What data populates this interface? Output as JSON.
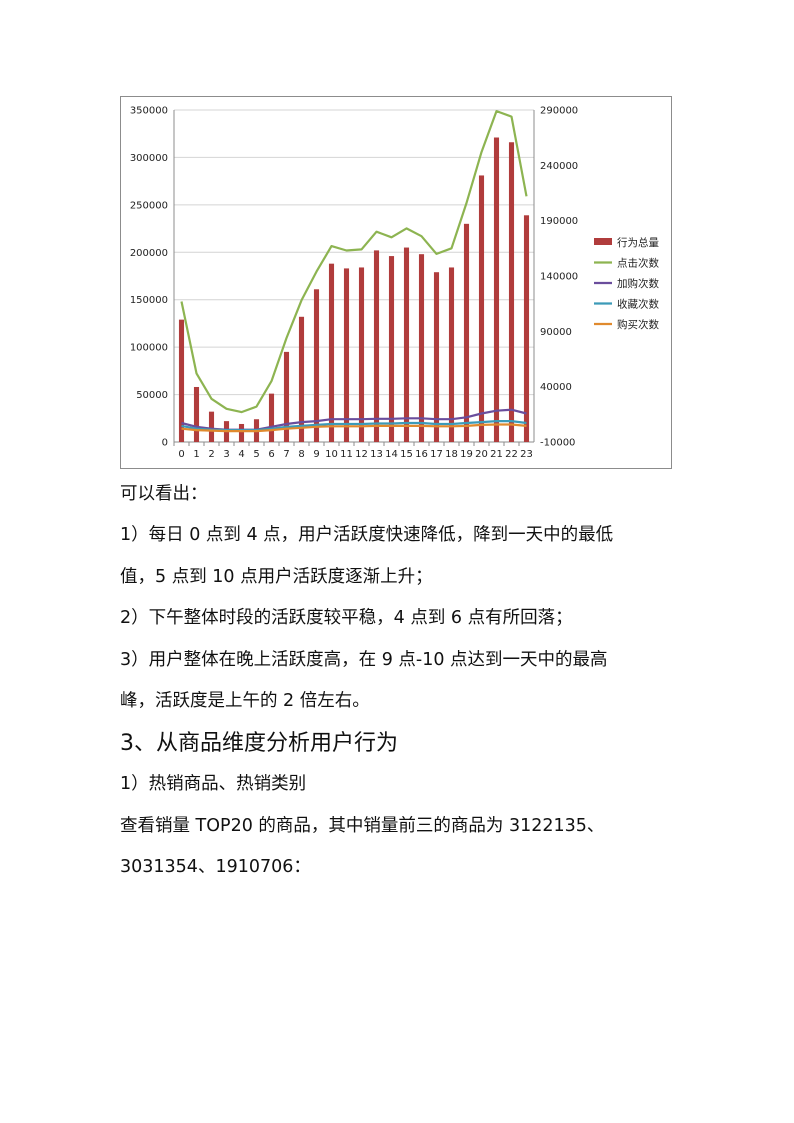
{
  "chart_data": {
    "type": "bar+line",
    "categories": [
      "0",
      "1",
      "2",
      "3",
      "4",
      "5",
      "6",
      "7",
      "8",
      "9",
      "10",
      "11",
      "12",
      "13",
      "14",
      "15",
      "16",
      "17",
      "18",
      "19",
      "20",
      "21",
      "22",
      "23"
    ],
    "series": [
      {
        "name": "行为总量",
        "type": "bar",
        "axis": "left",
        "color": "#b03c3c",
        "values": [
          129000,
          58000,
          32000,
          22000,
          19000,
          24000,
          51000,
          95000,
          132000,
          161000,
          188000,
          183000,
          184000,
          202000,
          196000,
          205000,
          198000,
          179000,
          184000,
          230000,
          281000,
          321000,
          316000,
          239000
        ]
      },
      {
        "name": "点击次数",
        "type": "line",
        "axis": "right",
        "color": "#8db451",
        "values": [
          117000,
          52000,
          29000,
          20000,
          17000,
          22000,
          45000,
          84000,
          118000,
          144000,
          167000,
          163000,
          164000,
          180000,
          175000,
          183000,
          176000,
          160000,
          165000,
          206000,
          252000,
          289000,
          284000,
          212000
        ]
      },
      {
        "name": "加购次数",
        "type": "line",
        "axis": "left",
        "color": "#6a4d9c",
        "values": [
          20000,
          16000,
          14000,
          13000,
          13000,
          13000,
          16000,
          19000,
          21000,
          22000,
          24000,
          24000,
          24000,
          24500,
          24500,
          25000,
          25000,
          24000,
          24000,
          26000,
          30000,
          33000,
          34000,
          30000
        ]
      },
      {
        "name": "收藏次数",
        "type": "line",
        "axis": "left",
        "color": "#3c9ab8",
        "values": [
          17000,
          14000,
          13000,
          12500,
          12500,
          12500,
          14000,
          16000,
          17000,
          18000,
          19000,
          19000,
          19000,
          19500,
          19500,
          20000,
          20000,
          19000,
          19000,
          20000,
          21000,
          22000,
          22000,
          20000
        ]
      },
      {
        "name": "购买次数",
        "type": "line",
        "axis": "left",
        "color": "#e08a2e",
        "values": [
          14000,
          12500,
          12000,
          11500,
          11500,
          11500,
          12500,
          14000,
          15000,
          16000,
          16500,
          16500,
          16500,
          17000,
          17000,
          17000,
          17000,
          16500,
          16500,
          17000,
          18000,
          18500,
          18500,
          17000
        ]
      }
    ],
    "y_left": {
      "min": 0,
      "max": 350000,
      "ticks": [
        0,
        50000,
        100000,
        150000,
        200000,
        250000,
        300000,
        350000
      ]
    },
    "y_right": {
      "min": -10000,
      "max": 290000,
      "ticks": [
        -10000,
        40000,
        90000,
        140000,
        190000,
        240000,
        290000
      ]
    },
    "grid": true,
    "legend": "right"
  },
  "text": {
    "p1": "可以看出：",
    "p2": "1）每日 0 点到 4 点，用户活跃度快速降低，降到一天中的最低",
    "p3": "值，5 点到 10 点用户活跃度逐渐上升；",
    "p4": "2）下午整体时段的活跃度较平稳，4 点到 6 点有所回落；",
    "p5": "3）用户整体在晚上活跃度高，在 9 点-10 点达到一天中的最高",
    "p6": "峰，活跃度是上午的 2 倍左右。",
    "h1": "3、从商品维度分析用户行为",
    "p7": "1）热销商品、热销类别",
    "p8": "查看销量 TOP20 的商品，其中销量前三的商品为 3122135、",
    "p9": "3031354、1910706："
  }
}
